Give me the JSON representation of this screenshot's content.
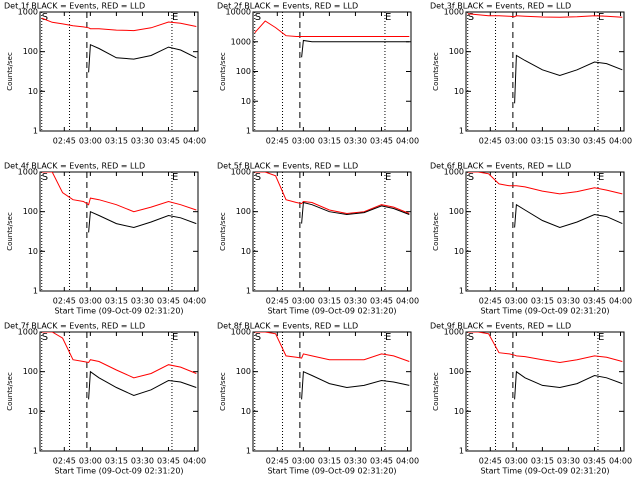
{
  "chart_data": [
    {
      "type": "line",
      "title": "Det 1f BLACK = Events, RED = LLD",
      "ylabel": "Counts/sec",
      "log": true,
      "xlim": [
        "02:31",
        "04:02"
      ],
      "xticks": [
        "02:45",
        "03:00",
        "03:15",
        "03:30",
        "03:45",
        "04:00"
      ],
      "ylim": [
        1,
        1000
      ],
      "yticks": [
        1,
        10,
        100,
        1000
      ],
      "annotations": [
        {
          "text": "S",
          "x": "02:32"
        },
        {
          "text": "E",
          "x": "03:47"
        }
      ],
      "dotted_lines": [
        "02:32",
        "02:48",
        "03:47"
      ],
      "dashed_lines": [
        "02:58"
      ],
      "x": [
        "02:32",
        "02:38",
        "02:44",
        "02:50",
        "02:56",
        "02:59",
        "03:00",
        "03:05",
        "03:15",
        "03:25",
        "03:35",
        "03:45",
        "03:52",
        "04:01"
      ],
      "series": [
        {
          "color": "#ff0000",
          "values": [
            700,
            550,
            500,
            450,
            420,
            400,
            380,
            380,
            350,
            340,
            400,
            560,
            520,
            430
          ]
        },
        {
          "color": "#000000",
          "values": [
            null,
            null,
            null,
            null,
            null,
            30,
            150,
            120,
            70,
            65,
            80,
            130,
            110,
            70
          ]
        }
      ]
    },
    {
      "type": "line",
      "title": "Det 2f BLACK = Events, RED = LLD",
      "ylabel": "Counts/sec",
      "log": true,
      "xlim": [
        "02:31",
        "04:02"
      ],
      "xticks": [
        "02:45",
        "03:00",
        "03:15",
        "03:30",
        "03:45",
        "04:00"
      ],
      "ylim": [
        1,
        10000
      ],
      "yticks": [
        1,
        10,
        100,
        1000,
        10000
      ],
      "annotations": [
        {
          "text": "S",
          "x": "02:32"
        },
        {
          "text": "E",
          "x": "03:47"
        }
      ],
      "dotted_lines": [
        "02:32",
        "02:48",
        "03:47"
      ],
      "dashed_lines": [
        "02:58"
      ],
      "x": [
        "02:32",
        "02:38",
        "02:44",
        "02:50",
        "02:56",
        "02:59",
        "03:00",
        "03:05",
        "03:15",
        "03:25",
        "03:35",
        "03:45",
        "03:52",
        "04:01"
      ],
      "series": [
        {
          "color": "#ff0000",
          "values": [
            2000,
            5000,
            3000,
            1600,
            1500,
            1500,
            1500,
            1500,
            1500,
            1500,
            1500,
            1500,
            1500,
            1500
          ]
        },
        {
          "color": "#000000",
          "values": [
            null,
            null,
            null,
            null,
            null,
            300,
            1100,
            1000,
            1000,
            1000,
            1000,
            1000,
            1000,
            1000
          ]
        }
      ]
    },
    {
      "type": "line",
      "title": "Det 3f BLACK = Events, RED = LLD",
      "ylabel": "Counts/sec",
      "log": true,
      "xlim": [
        "02:31",
        "04:02"
      ],
      "xticks": [
        "02:45",
        "03:00",
        "03:15",
        "03:30",
        "03:45",
        "04:00"
      ],
      "ylim": [
        1,
        1000
      ],
      "yticks": [
        1,
        10,
        100,
        1000
      ],
      "annotations": [
        {
          "text": "S",
          "x": "02:32"
        },
        {
          "text": "E",
          "x": "03:47"
        }
      ],
      "dotted_lines": [
        "02:32",
        "02:48",
        "03:47"
      ],
      "dashed_lines": [
        "02:58"
      ],
      "x": [
        "02:32",
        "02:38",
        "02:44",
        "02:50",
        "02:56",
        "02:59",
        "03:00",
        "03:05",
        "03:15",
        "03:25",
        "03:35",
        "03:45",
        "03:52",
        "04:01"
      ],
      "series": [
        {
          "color": "#ff0000",
          "values": [
            900,
            850,
            800,
            800,
            780,
            760,
            800,
            780,
            750,
            740,
            760,
            800,
            780,
            740
          ]
        },
        {
          "color": "#000000",
          "values": [
            null,
            null,
            null,
            null,
            null,
            5,
            80,
            60,
            35,
            25,
            35,
            55,
            50,
            35
          ]
        }
      ]
    },
    {
      "type": "line",
      "title": "Det 4f BLACK = Events, RED = LLD",
      "ylabel": "Counts/sec",
      "log": true,
      "xlim": [
        "02:31",
        "04:02"
      ],
      "xticks": [
        "02:45",
        "03:00",
        "03:15",
        "03:30",
        "03:45",
        "04:00"
      ],
      "ylim": [
        1,
        1000
      ],
      "yticks": [
        1,
        10,
        100,
        1000
      ],
      "xlabel": "Start Time (09-Oct-09 02:31:20)",
      "annotations": [
        {
          "text": "S",
          "x": "02:32"
        },
        {
          "text": "E",
          "x": "03:47"
        }
      ],
      "dotted_lines": [
        "02:32",
        "02:48",
        "03:47"
      ],
      "dashed_lines": [
        "02:58"
      ],
      "x": [
        "02:32",
        "02:38",
        "02:44",
        "02:50",
        "02:56",
        "02:59",
        "03:00",
        "03:05",
        "03:15",
        "03:25",
        "03:35",
        "03:45",
        "03:52",
        "04:01"
      ],
      "series": [
        {
          "color": "#ff0000",
          "values": [
            1000,
            1000,
            300,
            200,
            180,
            150,
            220,
            200,
            150,
            100,
            130,
            180,
            150,
            110
          ]
        },
        {
          "color": "#000000",
          "values": [
            null,
            null,
            null,
            null,
            null,
            30,
            100,
            80,
            50,
            40,
            55,
            80,
            70,
            50
          ]
        }
      ]
    },
    {
      "type": "line",
      "title": "Det 5f BLACK = Events, RED = LLD",
      "ylabel": "Counts/sec",
      "log": true,
      "xlim": [
        "02:31",
        "04:02"
      ],
      "xticks": [
        "02:45",
        "03:00",
        "03:15",
        "03:30",
        "03:45",
        "04:00"
      ],
      "ylim": [
        1,
        1000
      ],
      "yticks": [
        1,
        10,
        100,
        1000
      ],
      "xlabel": "Start Time (09-Oct-09 02:31:20)",
      "annotations": [
        {
          "text": "S",
          "x": "02:32"
        },
        {
          "text": "E",
          "x": "03:47"
        }
      ],
      "dotted_lines": [
        "02:32",
        "02:48",
        "03:47"
      ],
      "dashed_lines": [
        "02:58"
      ],
      "x": [
        "02:32",
        "02:38",
        "02:44",
        "02:50",
        "02:56",
        "02:59",
        "03:00",
        "03:05",
        "03:15",
        "03:25",
        "03:35",
        "03:45",
        "03:52",
        "04:01"
      ],
      "series": [
        {
          "color": "#ff0000",
          "values": [
            1000,
            1000,
            800,
            200,
            170,
            160,
            180,
            170,
            110,
            90,
            100,
            150,
            130,
            90
          ]
        },
        {
          "color": "#000000",
          "values": [
            null,
            null,
            null,
            null,
            null,
            50,
            170,
            150,
            100,
            85,
            95,
            140,
            120,
            85
          ]
        }
      ]
    },
    {
      "type": "line",
      "title": "Det 6f BLACK = Events, RED = LLD",
      "ylabel": "Counts/sec",
      "log": true,
      "xlim": [
        "02:31",
        "04:02"
      ],
      "xticks": [
        "02:45",
        "03:00",
        "03:15",
        "03:30",
        "03:45",
        "04:00"
      ],
      "ylim": [
        1,
        1000
      ],
      "yticks": [
        1,
        10,
        100,
        1000
      ],
      "xlabel": "Start Time (09-Oct-09 02:31:20)",
      "annotations": [
        {
          "text": "S",
          "x": "02:32"
        },
        {
          "text": "E",
          "x": "03:47"
        }
      ],
      "dotted_lines": [
        "02:32",
        "02:48",
        "03:47"
      ],
      "dashed_lines": [
        "02:58"
      ],
      "x": [
        "02:32",
        "02:38",
        "02:44",
        "02:50",
        "02:56",
        "02:59",
        "03:00",
        "03:05",
        "03:15",
        "03:25",
        "03:35",
        "03:45",
        "03:52",
        "04:01"
      ],
      "series": [
        {
          "color": "#ff0000",
          "values": [
            1000,
            1000,
            900,
            500,
            450,
            450,
            450,
            420,
            330,
            280,
            320,
            400,
            350,
            280
          ]
        },
        {
          "color": "#000000",
          "values": [
            null,
            null,
            null,
            null,
            null,
            40,
            150,
            110,
            60,
            40,
            55,
            85,
            75,
            50
          ]
        }
      ]
    },
    {
      "type": "line",
      "title": "Det 7f BLACK = Events, RED = LLD",
      "ylabel": "Counts/sec",
      "log": true,
      "xlim": [
        "02:31",
        "04:02"
      ],
      "xticks": [
        "02:45",
        "03:00",
        "03:15",
        "03:30",
        "03:45",
        "04:00"
      ],
      "ylim": [
        1,
        1000
      ],
      "yticks": [
        1,
        10,
        100,
        1000
      ],
      "xlabel": "Start Time (09-Oct-09 02:31:20)",
      "annotations": [
        {
          "text": "S",
          "x": "02:32"
        },
        {
          "text": "E",
          "x": "03:47"
        }
      ],
      "dotted_lines": [
        "02:32",
        "02:48",
        "03:47"
      ],
      "dashed_lines": [
        "02:58"
      ],
      "x": [
        "02:32",
        "02:38",
        "02:44",
        "02:50",
        "02:56",
        "02:59",
        "03:00",
        "03:05",
        "03:15",
        "03:25",
        "03:35",
        "03:45",
        "03:52",
        "04:01"
      ],
      "series": [
        {
          "color": "#ff0000",
          "values": [
            1000,
            1000,
            700,
            200,
            180,
            170,
            200,
            180,
            110,
            70,
            90,
            150,
            130,
            90
          ]
        },
        {
          "color": "#000000",
          "values": [
            null,
            null,
            null,
            null,
            null,
            20,
            100,
            70,
            40,
            25,
            35,
            60,
            55,
            40
          ]
        }
      ]
    },
    {
      "type": "line",
      "title": "Det 8f BLACK = Events, RED = LLD",
      "ylabel": "Counts/sec",
      "log": true,
      "xlim": [
        "02:31",
        "04:02"
      ],
      "xticks": [
        "02:45",
        "03:00",
        "03:15",
        "03:30",
        "03:45",
        "04:00"
      ],
      "ylim": [
        1,
        1000
      ],
      "yticks": [
        1,
        10,
        100,
        1000
      ],
      "xlabel": "Start Time (09-Oct-09 02:31:20)",
      "annotations": [
        {
          "text": "S",
          "x": "02:32"
        },
        {
          "text": "E",
          "x": "03:47"
        }
      ],
      "dotted_lines": [
        "02:32",
        "02:48",
        "03:47"
      ],
      "dashed_lines": [
        "02:58"
      ],
      "x": [
        "02:32",
        "02:38",
        "02:44",
        "02:50",
        "02:56",
        "02:59",
        "03:00",
        "03:05",
        "03:15",
        "03:25",
        "03:35",
        "03:45",
        "03:52",
        "04:01"
      ],
      "series": [
        {
          "color": "#ff0000",
          "values": [
            1000,
            1000,
            900,
            250,
            230,
            220,
            280,
            250,
            200,
            200,
            200,
            280,
            250,
            180
          ]
        },
        {
          "color": "#000000",
          "values": [
            null,
            null,
            null,
            null,
            null,
            20,
            100,
            80,
            50,
            40,
            45,
            60,
            55,
            45
          ]
        }
      ]
    },
    {
      "type": "line",
      "title": "Det 9f BLACK = Events, RED = LLD",
      "ylabel": "Counts/sec",
      "log": true,
      "xlim": [
        "02:31",
        "04:02"
      ],
      "xticks": [
        "02:45",
        "03:00",
        "03:15",
        "03:30",
        "03:45",
        "04:00"
      ],
      "ylim": [
        1,
        1000
      ],
      "yticks": [
        1,
        10,
        100,
        1000
      ],
      "xlabel": "Start Time (09-Oct-09 02:31:20)",
      "annotations": [
        {
          "text": "S",
          "x": "02:32"
        },
        {
          "text": "E",
          "x": "03:47"
        }
      ],
      "dotted_lines": [
        "02:32",
        "02:48",
        "03:47"
      ],
      "dashed_lines": [
        "02:58"
      ],
      "x": [
        "02:32",
        "02:38",
        "02:44",
        "02:50",
        "02:56",
        "02:59",
        "03:00",
        "03:05",
        "03:15",
        "03:25",
        "03:35",
        "03:45",
        "03:52",
        "04:01"
      ],
      "series": [
        {
          "color": "#ff0000",
          "values": [
            1000,
            1000,
            900,
            300,
            280,
            260,
            250,
            240,
            200,
            170,
            200,
            250,
            230,
            180
          ]
        },
        {
          "color": "#000000",
          "values": [
            null,
            null,
            null,
            null,
            null,
            20,
            100,
            70,
            45,
            40,
            50,
            80,
            70,
            50
          ]
        }
      ]
    }
  ]
}
